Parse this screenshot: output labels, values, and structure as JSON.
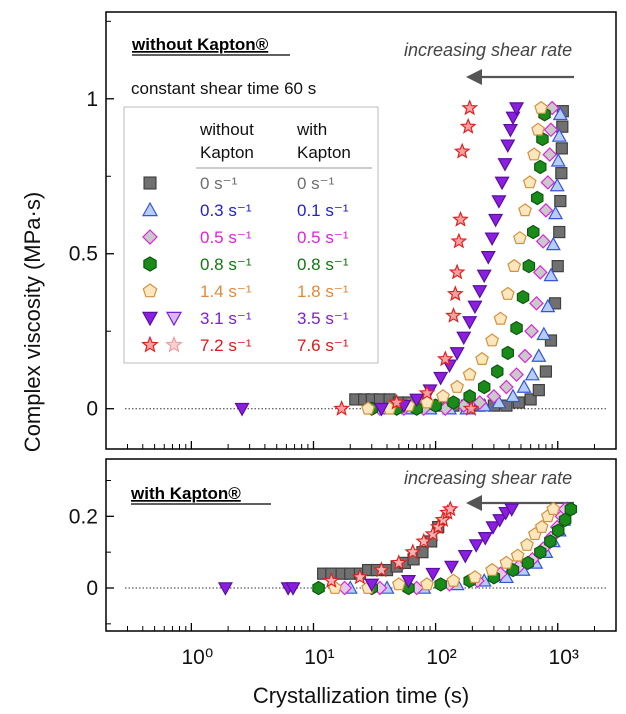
{
  "chart_data": [
    {
      "type": "scatter",
      "panel_title": "without Kapton®",
      "note": "constant shear time 60 s",
      "annotation": "increasing shear rate",
      "xlabel": "Crystallization time (s)",
      "ylabel": "Complex viscosity (MPa·s)",
      "xscale": "log",
      "xlim": [
        0.2,
        3000
      ],
      "ylim": [
        -0.13,
        1.28
      ],
      "yticks": [
        "0",
        "0.5",
        "1"
      ],
      "legend": {
        "header_without": [
          "without",
          "Kapton"
        ],
        "header_with": [
          "with",
          "Kapton"
        ],
        "entries": [
          {
            "without": "0 s⁻¹",
            "with": "0 s⁻¹",
            "color": "#6e6e6e"
          },
          {
            "without": "0.3 s⁻¹",
            "with": "0.1 s⁻¹",
            "color": "#2222cc"
          },
          {
            "without": "0.5 s⁻¹",
            "with": "0.5 s⁻¹",
            "color": "#dd22dd"
          },
          {
            "without": "0.8 s⁻¹",
            "with": "0.8 s⁻¹",
            "color": "#117711"
          },
          {
            "without": "1.4 s⁻¹",
            "with": "1.8 s⁻¹",
            "color": "#e08a3c"
          },
          {
            "without": "3.1 s⁻¹",
            "with": "3.5 s⁻¹",
            "color": "#7a1fd6"
          },
          {
            "without": "7.2 s⁻¹",
            "with": "7.6 s⁻¹",
            "color": "#e01818"
          }
        ]
      },
      "series": [
        {
          "label": "0 s⁻¹",
          "marker": "square",
          "fill": "#707070",
          "stroke": "#404040",
          "x": [
            22,
            26,
            30,
            35,
            42,
            50,
            60,
            75,
            90,
            110,
            140,
            180,
            230,
            300,
            380,
            480,
            600,
            700,
            800,
            880,
            950,
            1000,
            1030,
            1050,
            1070,
            1080,
            1090,
            1100
          ],
          "y": [
            0.03,
            0.03,
            0.03,
            0.03,
            0.03,
            0.02,
            0.02,
            0.02,
            0.01,
            0.01,
            0.01,
            0.01,
            0.01,
            0.01,
            0.01,
            0.02,
            0.03,
            0.06,
            0.12,
            0.22,
            0.34,
            0.46,
            0.57,
            0.67,
            0.76,
            0.84,
            0.91,
            0.96
          ]
        },
        {
          "label": "0.3 s⁻¹",
          "marker": "triangle-up",
          "fill": "#b8cdf5",
          "stroke": "#3355dd",
          "x": [
            40,
            60,
            90,
            130,
            180,
            250,
            330,
            430,
            530,
            620,
            700,
            770,
            830,
            880,
            920,
            960,
            990,
            1010,
            1030,
            1050
          ],
          "y": [
            0.0,
            0.0,
            0.0,
            0.0,
            0.0,
            0.01,
            0.02,
            0.04,
            0.07,
            0.11,
            0.17,
            0.24,
            0.33,
            0.43,
            0.53,
            0.63,
            0.72,
            0.8,
            0.88,
            0.95
          ]
        },
        {
          "label": "0.5 s⁻¹",
          "marker": "diamond",
          "fill": "#c9c9c9",
          "stroke": "#dd22dd",
          "x": [
            35,
            55,
            80,
            120,
            170,
            230,
            300,
            380,
            460,
            540,
            610,
            670,
            720,
            760,
            800,
            830,
            860,
            880,
            900
          ],
          "y": [
            0.0,
            0.0,
            0.0,
            0.0,
            0.01,
            0.02,
            0.04,
            0.07,
            0.11,
            0.17,
            0.25,
            0.34,
            0.44,
            0.54,
            0.64,
            0.73,
            0.82,
            0.9,
            0.97
          ]
        },
        {
          "label": "0.8 s⁻¹",
          "marker": "hexagon",
          "fill": "#1a8a1a",
          "stroke": "#0d5a0d",
          "x": [
            30,
            48,
            70,
            100,
            140,
            190,
            250,
            320,
            390,
            460,
            520,
            580,
            630,
            680,
            720,
            750,
            780
          ],
          "y": [
            0.0,
            0.0,
            0.0,
            0.01,
            0.02,
            0.04,
            0.07,
            0.12,
            0.18,
            0.26,
            0.36,
            0.46,
            0.57,
            0.68,
            0.78,
            0.87,
            0.95
          ]
        },
        {
          "label": "1.4 s⁻¹",
          "marker": "pentagon",
          "fill": "#fbe7bd",
          "stroke": "#d4913f",
          "x": [
            28,
            42,
            60,
            85,
            115,
            150,
            190,
            240,
            290,
            340,
            390,
            440,
            490,
            540,
            590,
            640,
            690,
            730
          ],
          "y": [
            0.0,
            0.0,
            0.01,
            0.02,
            0.04,
            0.07,
            0.11,
            0.16,
            0.22,
            0.29,
            0.37,
            0.46,
            0.55,
            0.64,
            0.73,
            0.82,
            0.9,
            0.97
          ]
        },
        {
          "label": "3.1 s⁻¹",
          "marker": "triangle-down",
          "fill": "#8a1fe0",
          "stroke": "#5a0fa0",
          "x": [
            2.6,
            36,
            55,
            70,
            90,
            110,
            130,
            150,
            170,
            190,
            210,
            230,
            250,
            270,
            290,
            310,
            330,
            350,
            370,
            390,
            410,
            430,
            460
          ],
          "y": [
            0.0,
            0.0,
            0.01,
            0.03,
            0.06,
            0.1,
            0.14,
            0.18,
            0.23,
            0.28,
            0.33,
            0.38,
            0.43,
            0.49,
            0.55,
            0.61,
            0.67,
            0.73,
            0.79,
            0.85,
            0.9,
            0.94,
            0.97
          ]
        },
        {
          "label": "7.2 s⁻¹",
          "marker": "star",
          "fill": "#f7a0a0",
          "stroke": "#e02020",
          "x": [
            17,
            48,
            85,
            120,
            140,
            145,
            150,
            155,
            160,
            165,
            185,
            190,
            195
          ],
          "y": [
            0.0,
            0.02,
            0.05,
            0.16,
            0.3,
            0.37,
            0.44,
            0.54,
            0.61,
            0.83,
            0.91,
            0.97,
            0.0
          ]
        }
      ]
    },
    {
      "type": "scatter",
      "panel_title": "with Kapton®",
      "annotation": "increasing shear rate",
      "xlabel": "Crystallization time (s)",
      "ylabel": "Complex viscosity (MPa·s)",
      "xscale": "log",
      "xlim": [
        0.2,
        3000
      ],
      "ylim": [
        -0.12,
        0.36
      ],
      "yticks": [
        "0",
        "0.2"
      ],
      "xticks": [
        "10⁰",
        "10¹",
        "10²",
        "10³"
      ],
      "series": [
        {
          "label": "0 s⁻¹",
          "marker": "square",
          "fill": "#707070",
          "stroke": "#404040",
          "x": [
            12,
            14,
            17,
            20,
            24,
            28,
            33,
            40,
            48,
            56,
            66,
            78,
            92,
            105
          ],
          "y": [
            0.04,
            0.04,
            0.04,
            0.04,
            0.04,
            0.05,
            0.05,
            0.05,
            0.06,
            0.07,
            0.08,
            0.1,
            0.13,
            0.17
          ]
        },
        {
          "label": "0.1 s⁻¹",
          "marker": "triangle-up",
          "fill": "#b8cdf5",
          "stroke": "#3355dd",
          "x": [
            20,
            40,
            80,
            150,
            250,
            380,
            520,
            660,
            800,
            920,
            1030,
            1120,
            1200
          ],
          "y": [
            0.0,
            0.0,
            0.0,
            0.01,
            0.02,
            0.03,
            0.05,
            0.07,
            0.1,
            0.13,
            0.16,
            0.19,
            0.22
          ]
        },
        {
          "label": "0.5 s⁻¹",
          "marker": "diamond",
          "fill": "#e8c7ec",
          "stroke": "#dd22dd",
          "x": [
            18,
            35,
            70,
            130,
            220,
            340,
            480,
            620,
            760,
            880,
            990,
            1080,
            1150
          ],
          "y": [
            0.0,
            0.0,
            0.0,
            0.01,
            0.02,
            0.04,
            0.06,
            0.08,
            0.11,
            0.14,
            0.17,
            0.2,
            0.22
          ]
        },
        {
          "label": "0.8 s⁻¹",
          "marker": "hexagon",
          "fill": "#1a8a1a",
          "stroke": "#0d5a0d",
          "x": [
            11,
            30,
            60,
            110,
            190,
            300,
            430,
            570,
            720,
            870,
            1010,
            1150,
            1280
          ],
          "y": [
            0.0,
            0.0,
            0.0,
            0.01,
            0.02,
            0.03,
            0.05,
            0.07,
            0.1,
            0.13,
            0.16,
            0.19,
            0.22
          ]
        },
        {
          "label": "1.8 s⁻¹",
          "marker": "pentagon",
          "fill": "#fbe7bd",
          "stroke": "#d4913f",
          "x": [
            15,
            28,
            50,
            85,
            140,
            210,
            290,
            380,
            470,
            560,
            650,
            740,
            830,
            920
          ],
          "y": [
            0.0,
            0.0,
            0.01,
            0.01,
            0.02,
            0.03,
            0.05,
            0.07,
            0.09,
            0.12,
            0.15,
            0.17,
            0.2,
            0.22
          ]
        },
        {
          "label": "3.5 s⁻¹",
          "marker": "triangle-down",
          "fill": "#8a1fe0",
          "stroke": "#5a0fa0",
          "x": [
            1.9,
            6.2,
            6.8,
            30,
            60,
            95,
            135,
            175,
            215,
            255,
            295,
            335,
            375,
            420
          ],
          "y": [
            0.0,
            0.0,
            0.0,
            0.01,
            0.02,
            0.04,
            0.06,
            0.09,
            0.12,
            0.14,
            0.17,
            0.19,
            0.21,
            0.22
          ]
        },
        {
          "label": "7.6 s⁻¹",
          "marker": "star",
          "fill": "#f7b4b4",
          "stroke": "#e02020",
          "x": [
            14,
            24,
            36,
            50,
            65,
            80,
            95,
            105,
            115,
            125,
            132
          ],
          "y": [
            0.02,
            0.03,
            0.05,
            0.07,
            0.1,
            0.13,
            0.15,
            0.17,
            0.19,
            0.21,
            0.22
          ]
        }
      ]
    }
  ]
}
